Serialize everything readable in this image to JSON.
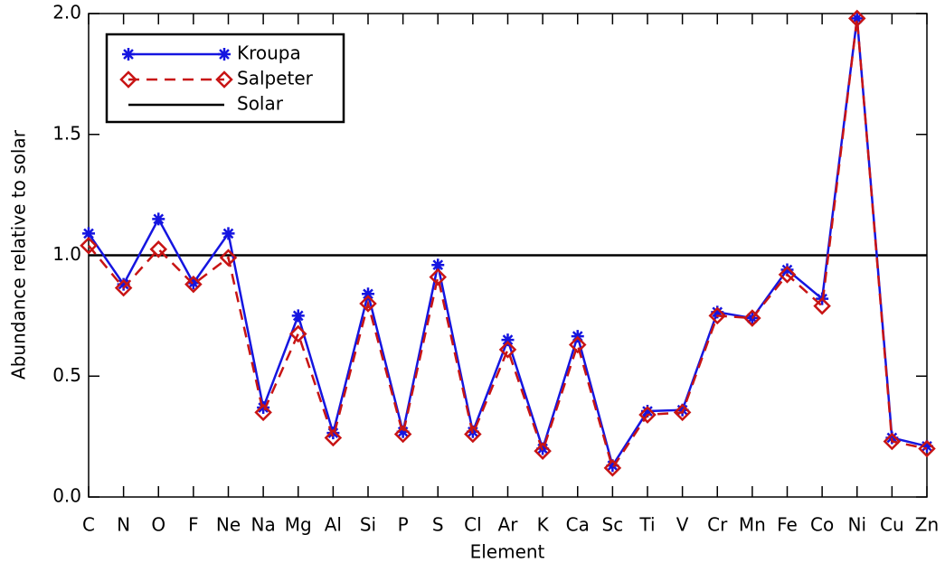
{
  "chart_data": {
    "type": "line",
    "x_label": "Element",
    "y_label": "Abundance relative to solar",
    "categories": [
      "C",
      "N",
      "O",
      "F",
      "Ne",
      "Na",
      "Mg",
      "Al",
      "Si",
      "P",
      "S",
      "Cl",
      "Ar",
      "K",
      "Ca",
      "Sc",
      "Ti",
      "V",
      "Cr",
      "Mn",
      "Fe",
      "Co",
      "Ni",
      "Cu",
      "Zn"
    ],
    "series": [
      {
        "name": "Kroupa",
        "color": "#1515e0",
        "marker": "asterisk",
        "dash": false,
        "values": [
          1.09,
          0.88,
          1.15,
          0.885,
          1.09,
          0.37,
          0.75,
          0.265,
          0.84,
          0.27,
          0.96,
          0.27,
          0.65,
          0.2,
          0.665,
          0.13,
          0.355,
          0.36,
          0.765,
          0.74,
          0.94,
          0.82,
          1.98,
          0.245,
          0.21
        ]
      },
      {
        "name": "Salpeter",
        "color": "#c81414",
        "marker": "diamond",
        "dash": true,
        "values": [
          1.04,
          0.865,
          1.025,
          0.88,
          0.99,
          0.35,
          0.675,
          0.245,
          0.8,
          0.26,
          0.91,
          0.26,
          0.61,
          0.19,
          0.63,
          0.12,
          0.34,
          0.35,
          0.75,
          0.74,
          0.92,
          0.79,
          1.98,
          0.23,
          0.2
        ]
      }
    ],
    "hlines": [
      {
        "name": "Solar",
        "value": 1,
        "color": "#000000"
      }
    ],
    "ylim": [
      0,
      2
    ],
    "yticks": [
      {
        "value": 0,
        "label": "0.0"
      },
      {
        "value": 0.5,
        "label": "0.5"
      },
      {
        "value": 1,
        "label": "1.0"
      },
      {
        "value": 1.5,
        "label": "1.5"
      },
      {
        "value": 2,
        "label": "2.0"
      }
    ],
    "legend": "top-left"
  }
}
